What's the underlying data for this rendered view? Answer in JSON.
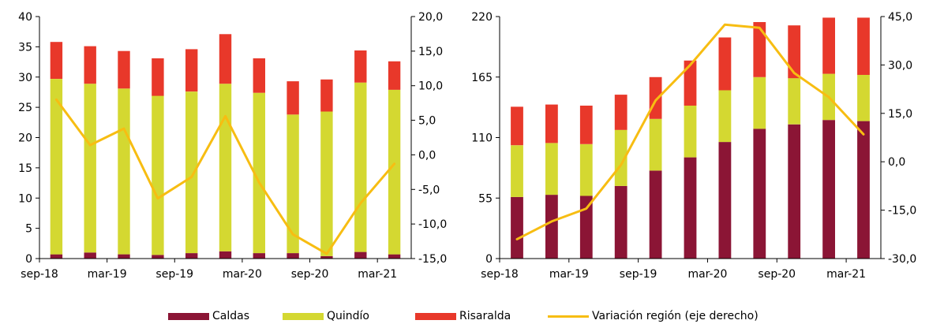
{
  "colors": {
    "caldas": "#8b1535",
    "quindio": "#d4d831",
    "risaralda": "#e8382a",
    "variacion": "#f7bd12"
  },
  "legend": {
    "caldas": "Caldas",
    "quindio": "Quindío",
    "risaralda": "Risaralda",
    "variacion": "Variación región (eje derecho)"
  },
  "chart_data": [
    {
      "type": "bar",
      "stacked": true,
      "categories": [
        "sep-18",
        "dic-18",
        "mar-19",
        "jun-19",
        "sep-19",
        "dic-19",
        "mar-20",
        "jun-20",
        "sep-20",
        "dic-20",
        "mar-21"
      ],
      "x_tick_labels": [
        "sep-18",
        "mar-19",
        "sep-19",
        "mar-20",
        "sep-20",
        "mar-21"
      ],
      "ylim": [
        0,
        40
      ],
      "y_ticks": [
        "0",
        "5",
        "10",
        "15",
        "20",
        "25",
        "30",
        "35",
        "40"
      ],
      "y2lim": [
        -15,
        20
      ],
      "y2_ticks": [
        "-15,0",
        "-10,0",
        "-5,0",
        "0,0",
        "5,0",
        "10,0",
        "15,0",
        "20,0"
      ],
      "series": [
        {
          "name": "Caldas",
          "values": [
            0.7,
            1.0,
            0.7,
            0.6,
            0.9,
            1.2,
            0.9,
            0.9,
            0.4,
            1.1,
            0.7
          ]
        },
        {
          "name": "Quindío",
          "values": [
            29.0,
            27.9,
            27.4,
            26.3,
            26.7,
            27.7,
            26.5,
            22.9,
            23.9,
            28.0,
            27.2
          ]
        },
        {
          "name": "Risaralda",
          "values": [
            6.1,
            6.2,
            6.2,
            6.2,
            7.0,
            8.2,
            5.7,
            5.5,
            5.3,
            5.3,
            4.7
          ]
        }
      ],
      "line": {
        "name": "Variación región (eje derecho)",
        "axis": "right",
        "values": [
          8.0,
          1.4,
          3.8,
          -6.3,
          -3.2,
          5.6,
          -4.0,
          -11.5,
          -14.3,
          -7.0,
          -1.3
        ]
      }
    },
    {
      "type": "bar",
      "stacked": true,
      "categories": [
        "sep-18",
        "dic-18",
        "mar-19",
        "jun-19",
        "sep-19",
        "dic-19",
        "mar-20",
        "jun-20",
        "sep-20",
        "dic-20",
        "mar-21"
      ],
      "x_tick_labels": [
        "sep-18",
        "mar-19",
        "sep-19",
        "mar-20",
        "sep-20",
        "mar-21"
      ],
      "ylim": [
        0,
        220
      ],
      "y_ticks": [
        "0",
        "55",
        "110",
        "165",
        "220"
      ],
      "y2lim": [
        -30,
        45
      ],
      "y2_ticks": [
        "-30,0",
        "-15,0",
        "0,0",
        "15,0",
        "30,0",
        "45,0"
      ],
      "series": [
        {
          "name": "Caldas",
          "values": [
            56,
            58,
            57,
            66,
            80,
            92,
            106,
            118,
            122,
            126,
            125
          ]
        },
        {
          "name": "Quindío",
          "values": [
            47,
            47,
            47,
            51,
            47,
            47,
            47,
            47,
            42,
            42,
            42
          ]
        },
        {
          "name": "Risaralda",
          "values": [
            35,
            35,
            35,
            32,
            38,
            41,
            48,
            50,
            48,
            51,
            52
          ]
        }
      ],
      "line": {
        "name": "Variación región (eje derecho)",
        "axis": "right",
        "values": [
          -24.0,
          -18.5,
          -14.5,
          -1.0,
          19.0,
          30.0,
          42.5,
          41.5,
          27.5,
          20.0,
          8.5
        ]
      }
    }
  ]
}
